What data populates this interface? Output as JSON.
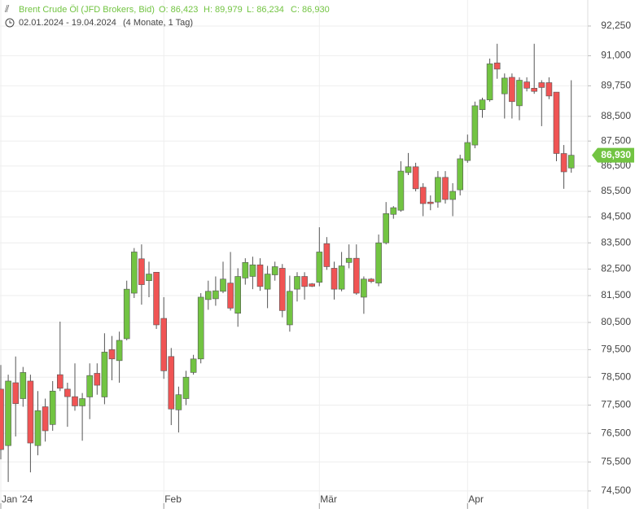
{
  "header": {
    "title": "Brent Crude Öl (JFD Brokers, Bid)",
    "ohlc": [
      "O: 86,423",
      "H: 89,979",
      "L: 86,234",
      "C: 86,930"
    ],
    "range": "02.01.2024 - 19.04.2024",
    "period": "(4 Monate, 1 Tag)"
  },
  "chart_data": {
    "type": "candlestick",
    "log_scale": true,
    "grid": true,
    "up_color": "#72c442",
    "down_color": "#f05454",
    "categories": [
      "Jan '24",
      null,
      null,
      null,
      null,
      null,
      null,
      null,
      null,
      null,
      null,
      null,
      null,
      null,
      null,
      null,
      null,
      null,
      null,
      null,
      null,
      null,
      "Feb",
      null,
      null,
      null,
      null,
      null,
      null,
      null,
      null,
      null,
      null,
      null,
      null,
      null,
      null,
      null,
      null,
      null,
      null,
      null,
      null,
      "Mär",
      null,
      null,
      null,
      null,
      null,
      null,
      null,
      null,
      null,
      null,
      null,
      null,
      null,
      null,
      null,
      null,
      null,
      null,
      null,
      "Apr",
      null,
      null,
      null,
      null,
      null,
      null,
      null,
      null,
      null,
      null,
      null,
      null,
      null,
      null
    ],
    "open": [
      78.07,
      76.07,
      78.3,
      77.73,
      78.36,
      76.07,
      77.44,
      76.81,
      78.59,
      78.07,
      77.8,
      77.47,
      77.79,
      78.64,
      77.79,
      79.5,
      79.1,
      79.9,
      81.59,
      82.89,
      82.06,
      82.38,
      80.65,
      79.25,
      77.33,
      77.73,
      78.67,
      79.16,
      81.35,
      81.38,
      81.66,
      81.97,
      80.84,
      82.16,
      82.22,
      82.66,
      81.74,
      82.28,
      82.53,
      80.41,
      81.74,
      82.22,
      81.94,
      82.0,
      83.47,
      82.53,
      81.74,
      82.75,
      82.91,
      81.44,
      82.12,
      81.97,
      83.5,
      84.6,
      84.76,
      86.24,
      86.47,
      85.66,
      85.08,
      85.08,
      86.05,
      85.18,
      85.56,
      86.72,
      87.34,
      88.77,
      89.17,
      90.7,
      89.42,
      90.1,
      88.93,
      89.91,
      89.65,
      89.88,
      89.88,
      89.49,
      87.0,
      86.423
    ],
    "high": [
      78.94,
      78.59,
      79.25,
      78.87,
      78.59,
      78.0,
      77.73,
      78.36,
      80.53,
      78.3,
      79.0,
      77.93,
      79.0,
      79.0,
      80.1,
      80.0,
      80.16,
      82.06,
      83.3,
      83.44,
      82.78,
      82.38,
      81.44,
      79.56,
      78.16,
      78.73,
      79.31,
      81.59,
      82.06,
      82.22,
      82.78,
      83.15,
      82.53,
      82.91,
      82.97,
      82.91,
      82.62,
      82.78,
      82.69,
      82.25,
      82.38,
      82.38,
      81.97,
      84.1,
      83.72,
      82.78,
      83.15,
      83.44,
      83.44,
      82.22,
      82.16,
      83.82,
      85.08,
      84.92,
      86.69,
      87.02,
      86.63,
      85.82,
      85.34,
      86.3,
      86.3,
      85.82,
      86.95,
      87.76,
      89.1,
      89.26,
      90.88,
      91.5,
      90.26,
      90.26,
      90.1,
      90.1,
      91.5,
      89.98,
      90.1,
      89.49,
      87.34,
      89.979
    ],
    "low": [
      75.59,
      74.81,
      76.39,
      77.44,
      75.14,
      75.73,
      76.21,
      76.59,
      78.0,
      76.73,
      77.3,
      76.24,
      77.0,
      77.87,
      77.53,
      78.39,
      78.3,
      79.84,
      81.41,
      81.16,
      81.44,
      80.26,
      78.44,
      76.79,
      76.53,
      77.5,
      78.59,
      79.0,
      80.97,
      81.12,
      81.59,
      80.94,
      80.34,
      81.91,
      81.74,
      81.68,
      81.03,
      82.06,
      80.69,
      80.16,
      81.28,
      81.35,
      81.82,
      81.85,
      82.47,
      81.35,
      81.66,
      82.53,
      81.53,
      80.82,
      81.97,
      81.85,
      83.44,
      84.43,
      84.7,
      86.14,
      85.5,
      84.53,
      84.76,
      84.86,
      85.02,
      84.53,
      85.34,
      86.63,
      87.21,
      88.44,
      89.1,
      90.04,
      88.41,
      88.41,
      88.34,
      89.52,
      89.42,
      88.1,
      89.2,
      86.69,
      85.6,
      86.234
    ],
    "close": [
      75.93,
      78.36,
      77.55,
      78.67,
      76.16,
      77.3,
      76.59,
      78.0,
      78.1,
      77.8,
      77.47,
      77.73,
      78.56,
      78.21,
      79.41,
      79.16,
      79.84,
      81.74,
      83.15,
      81.91,
      82.31,
      80.41,
      78.73,
      77.36,
      77.87,
      78.5,
      79.16,
      81.44,
      81.66,
      81.68,
      82.12,
      81.03,
      82.22,
      82.75,
      82.66,
      81.84,
      82.31,
      82.59,
      80.94,
      81.66,
      82.22,
      81.84,
      81.85,
      83.15,
      82.59,
      81.74,
      82.62,
      82.91,
      81.59,
      82.12,
      82.03,
      83.5,
      84.63,
      84.86,
      86.3,
      86.47,
      85.6,
      85.02,
      85.02,
      86.05,
      85.18,
      85.5,
      86.79,
      87.44,
      88.93,
      89.17,
      90.66,
      90.44,
      90.07,
      89.1,
      89.98,
      89.65,
      89.52,
      89.68,
      89.33,
      87.0,
      86.27,
      86.93
    ],
    "last_price": {
      "value": 86.93,
      "label": "86,930"
    },
    "ylim": [
      73.97,
      93.36
    ],
    "yticks": [
      {
        "value": 74.5,
        "label": "74,500"
      },
      {
        "value": 75.5,
        "label": "75,500"
      },
      {
        "value": 76.5,
        "label": "76,500"
      },
      {
        "value": 77.5,
        "label": "77,500"
      },
      {
        "value": 78.5,
        "label": "78,500"
      },
      {
        "value": 79.5,
        "label": "79,500"
      },
      {
        "value": 80.5,
        "label": "80,500"
      },
      {
        "value": 81.5,
        "label": "81,500"
      },
      {
        "value": 82.5,
        "label": "82,500"
      },
      {
        "value": 83.5,
        "label": "83,500"
      },
      {
        "value": 84.5,
        "label": "84,500"
      },
      {
        "value": 85.5,
        "label": "85,500"
      },
      {
        "value": 86.5,
        "label": "86,500"
      },
      {
        "value": 87.5,
        "label": "87,500"
      },
      {
        "value": 88.5,
        "label": "88,500"
      },
      {
        "value": 89.75,
        "label": "89,750"
      },
      {
        "value": 91,
        "label": "91,000"
      },
      {
        "value": 92.25,
        "label": "92,250"
      }
    ]
  }
}
